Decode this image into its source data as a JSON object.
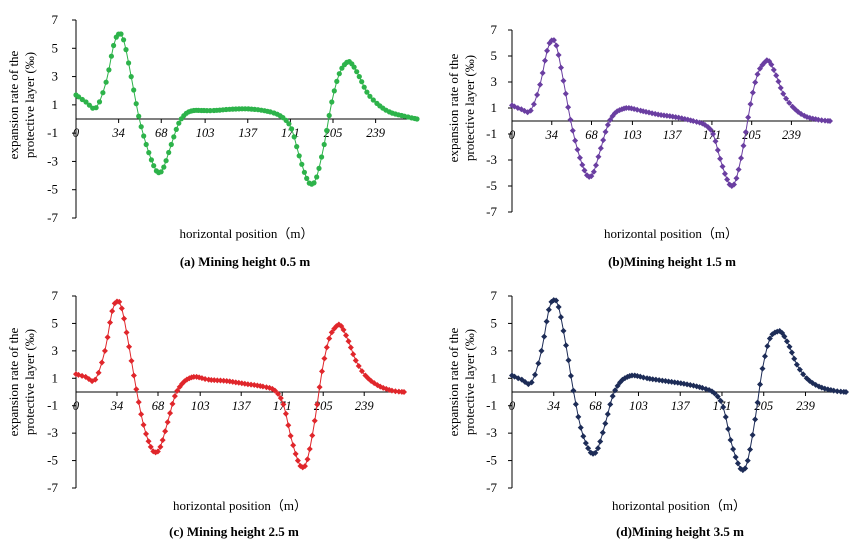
{
  "figure": {
    "ylabel_lines": [
      "expansion rate of the",
      "protective layer (‰)"
    ],
    "xlabel": "horizontal position（m）"
  },
  "chart_data": [
    {
      "type": "line",
      "title": "(a) Mining height 0.5 m",
      "color": "#2db34a",
      "marker": "circle",
      "xlabel": "horizontal position（m）",
      "ylabel": "expansion rate of the protective layer (‰)",
      "xlim": [
        0,
        272
      ],
      "ylim": [
        -7,
        7
      ],
      "x_tick_labels": [
        "0",
        "34",
        "68",
        "103",
        "137",
        "171",
        "205",
        "239"
      ],
      "y_tick_labels": [
        "7",
        "5",
        "3",
        "1",
        "-1",
        "-3",
        "-5",
        "-7"
      ],
      "series": [
        {
          "name": "Mining height 0.5 m",
          "x": [
            0,
            8,
            16,
            24,
            30,
            34,
            38,
            44,
            50,
            56,
            62,
            66,
            70,
            76,
            82,
            88,
            94,
            100,
            110,
            125,
            140,
            155,
            165,
            172,
            178,
            184,
            188,
            192,
            198,
            204,
            210,
            216,
            220,
            226,
            232,
            240,
            250,
            262,
            272
          ],
          "y": [
            1.7,
            1.2,
            0.8,
            2.6,
            5.2,
            6.0,
            5.6,
            3.0,
            0.2,
            -1.8,
            -3.3,
            -3.8,
            -3.4,
            -1.8,
            -0.3,
            0.4,
            0.6,
            0.6,
            0.6,
            0.7,
            0.7,
            0.5,
            0.1,
            -0.7,
            -2.6,
            -4.2,
            -4.6,
            -4.1,
            -1.8,
            1.2,
            3.2,
            4.0,
            3.9,
            3.0,
            1.9,
            1.1,
            0.5,
            0.2,
            0.0
          ]
        }
      ]
    },
    {
      "type": "line",
      "title": "(b)Mining height 1.5 m",
      "color": "#6a3ea1",
      "marker": "diamond",
      "xlabel": "horizontal position（m）",
      "ylabel": "expansion rate of the protective layer (‰)",
      "xlim": [
        0,
        272
      ],
      "ylim": [
        -7,
        7
      ],
      "x_tick_labels": [
        "0",
        "34",
        "68",
        "103",
        "137",
        "171",
        "205",
        "239"
      ],
      "y_tick_labels": [
        "7",
        "5",
        "3",
        "1",
        "-1",
        "-3",
        "-5",
        "-7"
      ],
      "series": [
        {
          "name": "Mining height 1.5 m",
          "x": [
            0,
            8,
            16,
            24,
            30,
            34,
            38,
            44,
            50,
            56,
            62,
            66,
            70,
            76,
            82,
            88,
            94,
            100,
            110,
            125,
            140,
            155,
            165,
            172,
            178,
            184,
            188,
            192,
            198,
            204,
            210,
            216,
            220,
            226,
            232,
            240,
            250,
            262,
            272
          ],
          "y": [
            1.2,
            0.9,
            0.8,
            2.8,
            5.4,
            6.2,
            5.8,
            3.1,
            0.1,
            -2.2,
            -3.8,
            -4.3,
            -3.9,
            -2.1,
            -0.3,
            0.6,
            0.9,
            1.0,
            0.8,
            0.5,
            0.3,
            0.0,
            -0.3,
            -1.0,
            -2.9,
            -4.5,
            -5.0,
            -4.4,
            -1.9,
            1.3,
            3.6,
            4.5,
            4.6,
            3.5,
            2.1,
            1.1,
            0.4,
            0.1,
            0.0
          ]
        }
      ]
    },
    {
      "type": "line",
      "title": "(c) Mining height 2.5 m",
      "color": "#e0262b",
      "marker": "diamond",
      "xlabel": "horizontal position（m）",
      "ylabel": "expansion rate of the protective layer (‰)",
      "xlim": [
        0,
        272
      ],
      "ylim": [
        -7,
        7
      ],
      "x_tick_labels": [
        "0",
        "34",
        "68",
        "103",
        "137",
        "171",
        "205",
        "239"
      ],
      "y_tick_labels": [
        "7",
        "5",
        "3",
        "1",
        "-1",
        "-3",
        "-5",
        "-7"
      ],
      "series": [
        {
          "name": "Mining height 2.5 m",
          "x": [
            0,
            8,
            16,
            24,
            30,
            34,
            38,
            44,
            50,
            56,
            62,
            66,
            70,
            76,
            82,
            88,
            94,
            100,
            110,
            125,
            140,
            155,
            165,
            172,
            178,
            184,
            188,
            192,
            198,
            204,
            210,
            216,
            220,
            226,
            232,
            240,
            250,
            262,
            272
          ],
          "y": [
            1.3,
            1.1,
            0.9,
            3.0,
            5.9,
            6.6,
            6.1,
            3.3,
            0.2,
            -2.4,
            -4.0,
            -4.4,
            -4.0,
            -2.2,
            -0.3,
            0.6,
            1.0,
            1.1,
            0.9,
            0.8,
            0.6,
            0.4,
            0.1,
            -0.9,
            -3.2,
            -5.0,
            -5.5,
            -4.9,
            -2.1,
            1.5,
            3.9,
            4.8,
            4.8,
            3.7,
            2.3,
            1.2,
            0.5,
            0.1,
            0.0
          ]
        }
      ]
    },
    {
      "type": "line",
      "title": "(d)Mining height 3.5 m",
      "color": "#1d2c57",
      "marker": "diamond",
      "xlabel": "horizontal position（m）",
      "ylabel": "expansion rate of the protective layer (‰)",
      "xlim": [
        0,
        272
      ],
      "ylim": [
        -7,
        7
      ],
      "x_tick_labels": [
        "0",
        "34",
        "68",
        "103",
        "137",
        "171",
        "205",
        "239"
      ],
      "y_tick_labels": [
        "7",
        "5",
        "3",
        "1",
        "-1",
        "-3",
        "-5",
        "-7"
      ],
      "series": [
        {
          "name": "Mining height 3.5 m",
          "x": [
            0,
            8,
            16,
            24,
            30,
            34,
            38,
            44,
            50,
            56,
            62,
            66,
            70,
            76,
            82,
            88,
            94,
            100,
            110,
            125,
            140,
            155,
            165,
            172,
            178,
            184,
            188,
            192,
            198,
            204,
            210,
            216,
            220,
            226,
            232,
            240,
            250,
            262,
            272
          ],
          "y": [
            1.2,
            0.9,
            0.7,
            3.0,
            6.0,
            6.7,
            6.2,
            3.4,
            0.1,
            -2.6,
            -4.1,
            -4.5,
            -4.1,
            -2.3,
            -0.3,
            0.7,
            1.1,
            1.2,
            1.0,
            0.8,
            0.6,
            0.3,
            -0.1,
            -1.1,
            -3.5,
            -5.2,
            -5.7,
            -5.0,
            -2.0,
            1.7,
            3.9,
            4.4,
            4.3,
            3.3,
            2.0,
            1.0,
            0.4,
            0.1,
            0.0
          ]
        }
      ]
    }
  ]
}
